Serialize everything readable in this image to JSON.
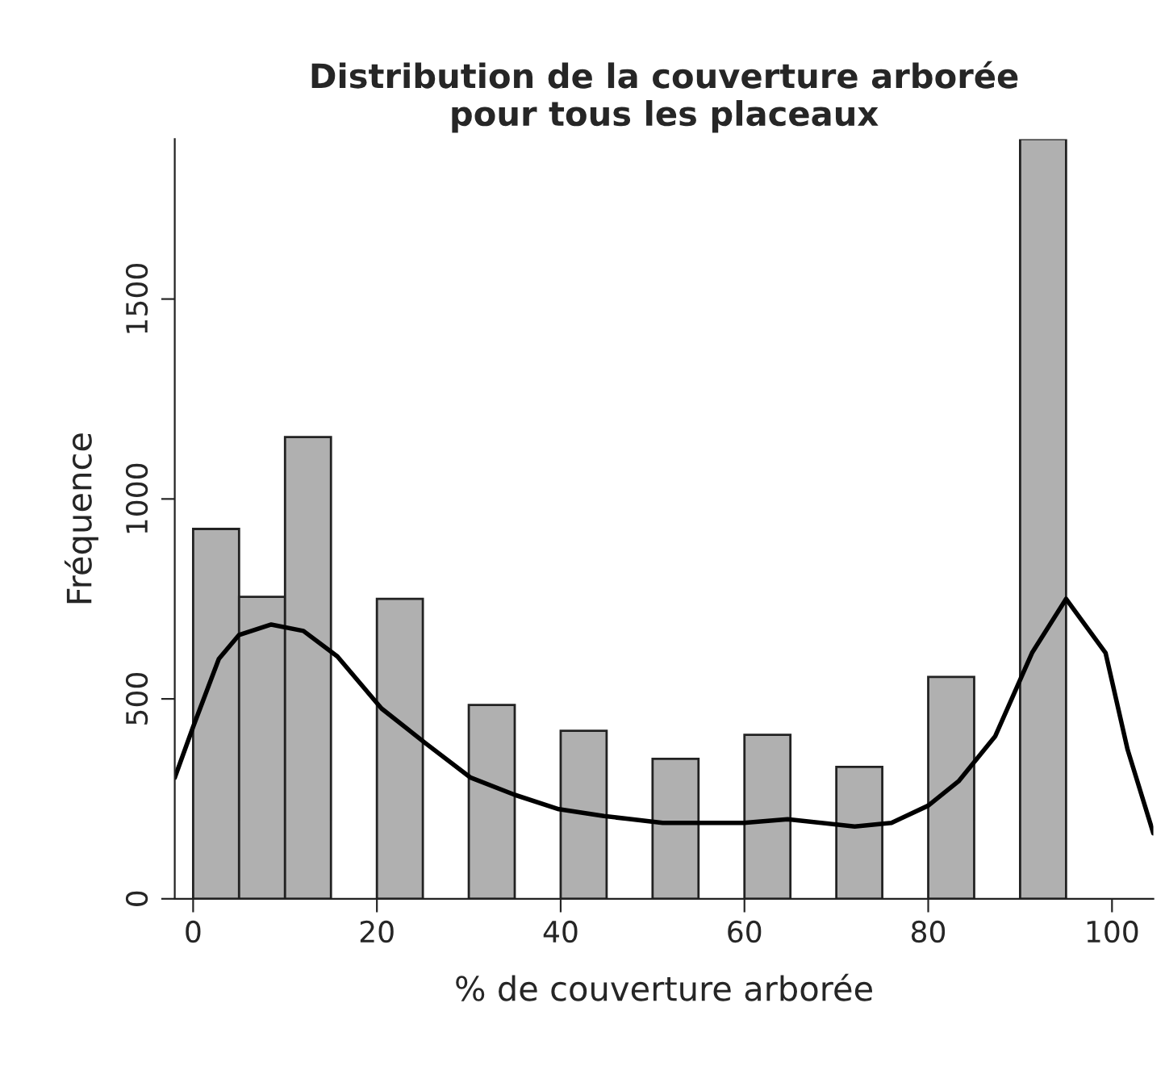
{
  "chart_data": {
    "type": "histogram",
    "title": "Distribution de la couverture arborée\npour tous les placeaux",
    "xlabel": "% de couverture arborée",
    "ylabel": "Fréquence",
    "bins": [
      0,
      5,
      10,
      15,
      20,
      25,
      30,
      35,
      40,
      45,
      50,
      55,
      60,
      65,
      70,
      75,
      80,
      85,
      90,
      95
    ],
    "values": [
      925,
      755,
      1155,
      0,
      750,
      0,
      485,
      0,
      420,
      0,
      350,
      0,
      410,
      0,
      330,
      0,
      555,
      0,
      1900
    ],
    "color": "#b0b0b0",
    "series": [
      {
        "type": "line",
        "color": "#000000",
        "x": [
          -2,
          0,
          2.8,
          5,
          8.5,
          12,
          15.7,
          20.5,
          25.3,
          30.2,
          35,
          39.8,
          44.7,
          51.1,
          59.9,
          64.7,
          72,
          76,
          80,
          83.3,
          87.3,
          91.3,
          95,
          99.3,
          101.7,
          104.5
        ],
        "values": [
          303,
          430,
          600,
          660,
          686,
          670,
          606,
          476,
          389,
          303,
          260,
          224,
          207,
          190,
          190,
          199,
          181,
          190,
          233,
          294,
          407,
          615,
          750,
          615,
          373,
          164
        ]
      }
    ],
    "xlim": [
      -2,
      104.5
    ],
    "ylim": [
      0,
      1900
    ],
    "xticks": [
      0,
      20,
      40,
      60,
      80,
      100
    ],
    "yticks": [
      0,
      500,
      1000,
      1500
    ],
    "grid": false
  }
}
